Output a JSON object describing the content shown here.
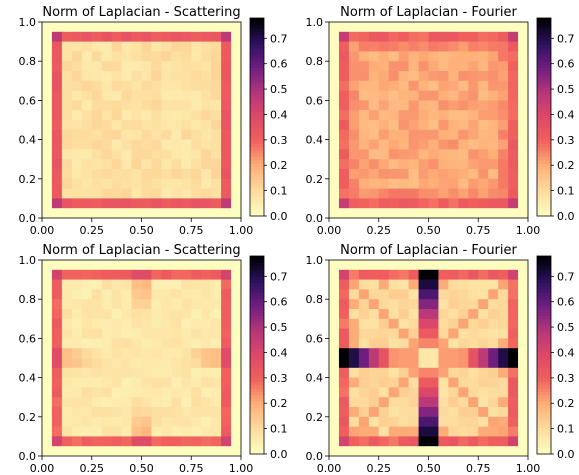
{
  "chart_data": [
    {
      "type": "heatmap",
      "title": "Norm of Laplacian - Scattering",
      "pattern": "scatter_bc",
      "grid_size": 20,
      "xlim": [
        0,
        1
      ],
      "ylim": [
        0,
        1
      ],
      "x_ticks": [
        "0.00",
        "0.25",
        "0.50",
        "0.75",
        "1.00"
      ],
      "y_ticks": [
        "0.0",
        "0.2",
        "0.4",
        "0.6",
        "0.8",
        "1.0"
      ],
      "colorbar": {
        "colormap": "magma_r",
        "range": [
          0,
          0.78
        ],
        "ticks": [
          "0.0",
          "0.1",
          "0.2",
          "0.3",
          "0.4",
          "0.5",
          "0.6",
          "0.7"
        ]
      },
      "outer_ring_value": 0.0,
      "boundary_value": 0.33,
      "corner_value": 0.47,
      "interior_value": 0.08,
      "grid": false
    },
    {
      "type": "heatmap",
      "title": "Norm of Laplacian - Fourier",
      "pattern": "fourier_bc",
      "grid_size": 20,
      "xlim": [
        0,
        1
      ],
      "ylim": [
        0,
        1
      ],
      "x_ticks": [
        "0.00",
        "0.25",
        "0.50",
        "0.75",
        "1.00"
      ],
      "y_ticks": [
        "0.0",
        "0.2",
        "0.4",
        "0.6",
        "0.8",
        "1.0"
      ],
      "colorbar": {
        "colormap": "magma_r",
        "range": [
          0,
          0.78
        ],
        "ticks": [
          "0.0",
          "0.1",
          "0.2",
          "0.3",
          "0.4",
          "0.5",
          "0.6",
          "0.7"
        ]
      },
      "outer_ring_value": 0.0,
      "boundary_value": 0.3,
      "corner_value": 0.45,
      "interior_value": 0.2,
      "grid": false
    },
    {
      "type": "heatmap",
      "title": "Norm of Laplacian - Scattering",
      "pattern": "scatter_mid",
      "grid_size": 20,
      "xlim": [
        0,
        1
      ],
      "ylim": [
        0,
        1
      ],
      "x_ticks": [
        "0.00",
        "0.25",
        "0.50",
        "0.75",
        "1.00"
      ],
      "y_ticks": [
        "0.0",
        "0.2",
        "0.4",
        "0.6",
        "0.8",
        "1.0"
      ],
      "colorbar": {
        "colormap": "magma_r",
        "range": [
          0,
          0.78
        ],
        "ticks": [
          "0.0",
          "0.1",
          "0.2",
          "0.3",
          "0.4",
          "0.5",
          "0.6",
          "0.7"
        ]
      },
      "outer_ring_value": 0.0,
      "boundary_value": 0.3,
      "corner_value": 0.42,
      "interior_value": 0.06,
      "midline_value": 0.2,
      "grid": false
    },
    {
      "type": "heatmap",
      "title": "Norm of Laplacian - Fourier",
      "pattern": "fourier_mid",
      "grid_size": 20,
      "xlim": [
        0,
        1
      ],
      "ylim": [
        0,
        1
      ],
      "x_ticks": [
        "0.00",
        "0.25",
        "0.50",
        "0.75",
        "1.00"
      ],
      "y_ticks": [
        "0.0",
        "0.2",
        "0.4",
        "0.6",
        "0.8",
        "1.0"
      ],
      "colorbar": {
        "colormap": "magma_r",
        "range": [
          0,
          0.78
        ],
        "ticks": [
          "0.0",
          "0.1",
          "0.2",
          "0.3",
          "0.4",
          "0.5",
          "0.6",
          "0.7"
        ]
      },
      "outer_ring_value": 0.0,
      "boundary_value": 0.3,
      "corner_value": 0.42,
      "interior_value": 0.1,
      "midline_value": 0.75,
      "diagonal_value": 0.16,
      "grid": false
    }
  ]
}
